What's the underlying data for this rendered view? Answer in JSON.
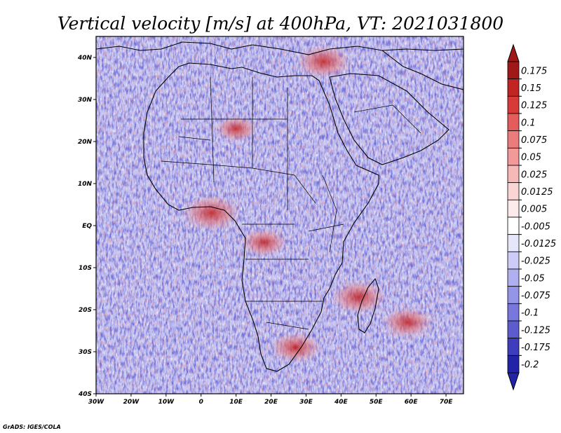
{
  "title": "Vertical velocity [m/s] at 400hPa, VT: 2021031800",
  "credit": "GrADS: IGES/COLA",
  "map": {
    "lon_range": [
      -30,
      75
    ],
    "lat_range": [
      -40,
      45
    ],
    "x_ticks": [
      {
        "value": -30,
        "label": "30W"
      },
      {
        "value": -20,
        "label": "20W"
      },
      {
        "value": -10,
        "label": "10W"
      },
      {
        "value": 0,
        "label": "0"
      },
      {
        "value": 10,
        "label": "10E"
      },
      {
        "value": 20,
        "label": "20E"
      },
      {
        "value": 30,
        "label": "30E"
      },
      {
        "value": 40,
        "label": "40E"
      },
      {
        "value": 50,
        "label": "50E"
      },
      {
        "value": 60,
        "label": "60E"
      },
      {
        "value": 70,
        "label": "70E"
      }
    ],
    "y_ticks": [
      {
        "value": 40,
        "label": "40N"
      },
      {
        "value": 30,
        "label": "30N"
      },
      {
        "value": 20,
        "label": "20N"
      },
      {
        "value": 10,
        "label": "10N"
      },
      {
        "value": 0,
        "label": "EQ"
      },
      {
        "value": -10,
        "label": "10S"
      },
      {
        "value": -20,
        "label": "20S"
      },
      {
        "value": -30,
        "label": "30S"
      },
      {
        "value": -40,
        "label": "40S"
      }
    ],
    "rising_regions": [
      {
        "name": "gulf-of-guinea",
        "lon": 3,
        "lat": 3,
        "strength": 0.9
      },
      {
        "name": "congo-east",
        "lon": 18,
        "lat": -4,
        "strength": 0.6
      },
      {
        "name": "mozambique-channel",
        "lon": 45,
        "lat": -17,
        "strength": 0.8
      },
      {
        "name": "indian-ocean-se",
        "lon": 59,
        "lat": -23,
        "strength": 0.7
      },
      {
        "name": "south-africa",
        "lon": 27,
        "lat": -29,
        "strength": 0.7
      },
      {
        "name": "turkey",
        "lon": 35,
        "lat": 39,
        "strength": 0.8
      },
      {
        "name": "sahara-central",
        "lon": 10,
        "lat": 23,
        "strength": 0.5
      }
    ]
  },
  "colorbar": {
    "levels": [
      {
        "label": "0.175",
        "color": "#a11818"
      },
      {
        "label": "0.15",
        "color": "#c22424"
      },
      {
        "label": "0.125",
        "color": "#d83a3a"
      },
      {
        "label": "0.1",
        "color": "#e55c5c"
      },
      {
        "label": "0.075",
        "color": "#ec7c7c"
      },
      {
        "label": "0.05",
        "color": "#f29a9a"
      },
      {
        "label": "0.025",
        "color": "#f7b8b8"
      },
      {
        "label": "0.0125",
        "color": "#fbd4d4"
      },
      {
        "label": "0.005",
        "color": "#fdeaea"
      },
      {
        "label": "-0.005",
        "color": "#ffffff"
      },
      {
        "label": "-0.0125",
        "color": "#e6e6fb"
      },
      {
        "label": "-0.025",
        "color": "#ccccf6"
      },
      {
        "label": "-0.05",
        "color": "#b0b0f0"
      },
      {
        "label": "-0.075",
        "color": "#9494e8"
      },
      {
        "label": "-0.1",
        "color": "#7777dc"
      },
      {
        "label": "-0.125",
        "color": "#5c5ccf"
      },
      {
        "label": "-0.175",
        "color": "#3d3dbe"
      },
      {
        "label": "-0.2",
        "color": "#2323a8"
      }
    ],
    "top_end_color": "#a11818",
    "bottom_end_color": "#2323a8"
  }
}
